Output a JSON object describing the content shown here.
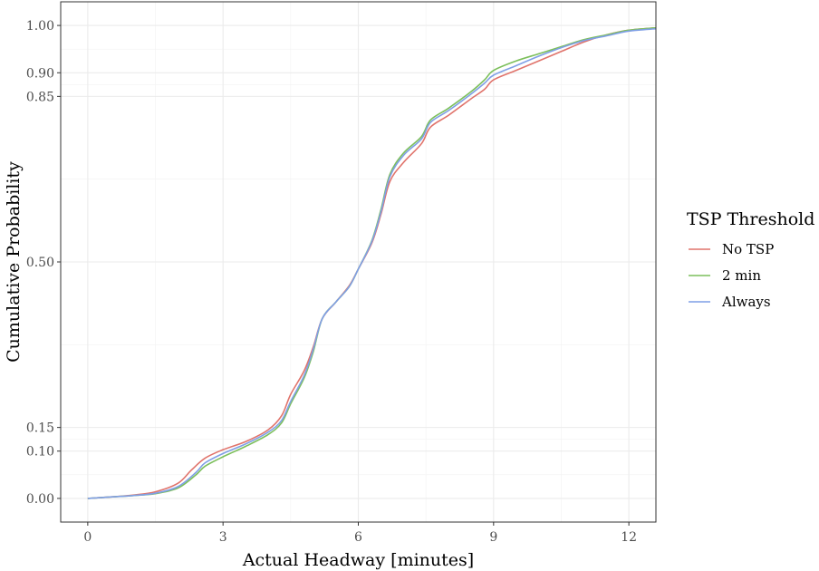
{
  "chart_data": {
    "type": "line",
    "title": "",
    "xlabel": "Actual Headway [minutes]",
    "ylabel": "Cumulative Probability",
    "xlim": [
      -0.6,
      12.6
    ],
    "ylim": [
      -0.05,
      1.05
    ],
    "x_ticks": [
      0,
      3,
      6,
      9,
      12
    ],
    "x_tick_labels": [
      "0",
      "3",
      "6",
      "9",
      "12"
    ],
    "y_ticks": [
      0.0,
      0.1,
      0.15,
      0.5,
      0.85,
      0.9,
      1.0
    ],
    "y_tick_labels": [
      "0.00",
      "0.10",
      "0.15",
      "0.50",
      "0.85",
      "0.90",
      "1.00"
    ],
    "grid": true,
    "legend": {
      "title": "TSP Threshold",
      "position": "right"
    },
    "series": [
      {
        "name": "No TSP",
        "color": "#e0736b",
        "points": [
          [
            0,
            0
          ],
          [
            0.5,
            0.003
          ],
          [
            1.0,
            0.007
          ],
          [
            1.5,
            0.014
          ],
          [
            2.0,
            0.032
          ],
          [
            2.3,
            0.06
          ],
          [
            2.6,
            0.085
          ],
          [
            3.0,
            0.103
          ],
          [
            3.5,
            0.12
          ],
          [
            4.0,
            0.145
          ],
          [
            4.3,
            0.175
          ],
          [
            4.5,
            0.22
          ],
          [
            4.8,
            0.27
          ],
          [
            5.0,
            0.32
          ],
          [
            5.2,
            0.38
          ],
          [
            5.5,
            0.415
          ],
          [
            5.8,
            0.45
          ],
          [
            6.0,
            0.485
          ],
          [
            6.3,
            0.54
          ],
          [
            6.5,
            0.6
          ],
          [
            6.7,
            0.67
          ],
          [
            7.0,
            0.71
          ],
          [
            7.4,
            0.75
          ],
          [
            7.6,
            0.785
          ],
          [
            8.0,
            0.81
          ],
          [
            8.5,
            0.845
          ],
          [
            8.8,
            0.865
          ],
          [
            9.0,
            0.885
          ],
          [
            9.5,
            0.905
          ],
          [
            10.0,
            0.925
          ],
          [
            10.5,
            0.945
          ],
          [
            11.0,
            0.965
          ],
          [
            11.5,
            0.98
          ],
          [
            12.0,
            0.99
          ],
          [
            12.6,
            0.995
          ]
        ]
      },
      {
        "name": "2 min",
        "color": "#7cbf5b",
        "points": [
          [
            0,
            0
          ],
          [
            0.5,
            0.003
          ],
          [
            1.0,
            0.006
          ],
          [
            1.5,
            0.01
          ],
          [
            2.0,
            0.022
          ],
          [
            2.4,
            0.05
          ],
          [
            2.6,
            0.068
          ],
          [
            3.0,
            0.088
          ],
          [
            3.5,
            0.11
          ],
          [
            4.0,
            0.135
          ],
          [
            4.3,
            0.16
          ],
          [
            4.5,
            0.2
          ],
          [
            4.8,
            0.255
          ],
          [
            5.0,
            0.31
          ],
          [
            5.2,
            0.38
          ],
          [
            5.5,
            0.415
          ],
          [
            5.8,
            0.448
          ],
          [
            6.0,
            0.485
          ],
          [
            6.3,
            0.545
          ],
          [
            6.5,
            0.61
          ],
          [
            6.7,
            0.685
          ],
          [
            7.0,
            0.73
          ],
          [
            7.4,
            0.765
          ],
          [
            7.6,
            0.8
          ],
          [
            8.0,
            0.825
          ],
          [
            8.5,
            0.86
          ],
          [
            8.8,
            0.885
          ],
          [
            9.0,
            0.905
          ],
          [
            9.5,
            0.925
          ],
          [
            10.0,
            0.94
          ],
          [
            10.5,
            0.955
          ],
          [
            11.0,
            0.97
          ],
          [
            11.5,
            0.98
          ],
          [
            12.0,
            0.99
          ],
          [
            12.6,
            0.995
          ]
        ]
      },
      {
        "name": "Always",
        "color": "#7f9fe6",
        "points": [
          [
            0,
            0
          ],
          [
            0.5,
            0.003
          ],
          [
            1.0,
            0.006
          ],
          [
            1.5,
            0.011
          ],
          [
            2.0,
            0.025
          ],
          [
            2.4,
            0.055
          ],
          [
            2.6,
            0.075
          ],
          [
            3.0,
            0.095
          ],
          [
            3.5,
            0.115
          ],
          [
            4.0,
            0.14
          ],
          [
            4.3,
            0.165
          ],
          [
            4.5,
            0.205
          ],
          [
            4.8,
            0.26
          ],
          [
            5.0,
            0.315
          ],
          [
            5.2,
            0.38
          ],
          [
            5.5,
            0.415
          ],
          [
            5.8,
            0.448
          ],
          [
            6.0,
            0.485
          ],
          [
            6.3,
            0.543
          ],
          [
            6.5,
            0.605
          ],
          [
            6.7,
            0.68
          ],
          [
            7.0,
            0.725
          ],
          [
            7.4,
            0.76
          ],
          [
            7.6,
            0.795
          ],
          [
            8.0,
            0.82
          ],
          [
            8.5,
            0.855
          ],
          [
            8.8,
            0.878
          ],
          [
            9.0,
            0.895
          ],
          [
            9.5,
            0.915
          ],
          [
            10.0,
            0.935
          ],
          [
            10.5,
            0.953
          ],
          [
            11.0,
            0.968
          ],
          [
            11.5,
            0.978
          ],
          [
            12.0,
            0.988
          ],
          [
            12.6,
            0.993
          ]
        ]
      }
    ]
  }
}
